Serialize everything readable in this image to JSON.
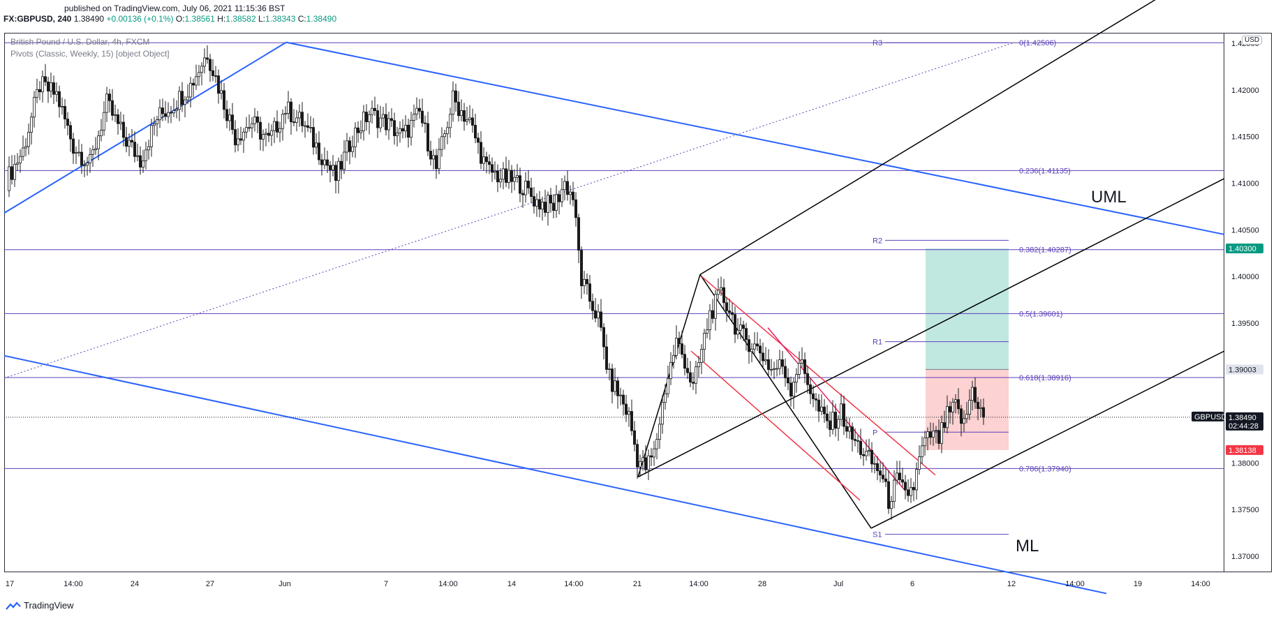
{
  "header": {
    "published": "published on TradingView.com, July 06, 2021 11:15:36 BST",
    "symbol": "FX:GBPUSD, 240",
    "last": "1.38490",
    "change": "+0.00136 (+0.1%)",
    "o_label": "O:",
    "o": "1.38561",
    "h_label": "H:",
    "h": "1.38582",
    "l_label": "L:",
    "l": "1.38343",
    "c_label": "C:",
    "c": "1.38490"
  },
  "legend": {
    "line1": "British Pound / U.S. Dollar, 4h, FXCM",
    "line2": "Pivots (Classic, Weekly, 15) [object Object]"
  },
  "currency": "USD",
  "footer": {
    "brand": "TradingView"
  },
  "colors": {
    "up": "#ffffff",
    "down": "#1a1a1a",
    "candle_edge": "#1a1a1a",
    "fib": "#5b3fb7",
    "channel_blue": "#2962ff",
    "pitchfork": "#000000",
    "red_channel": "#f23645",
    "magenta": "#e91e63",
    "target_zone": "#b9e6de",
    "stop_zone": "#fcd0d0",
    "badge_green": "#089981",
    "badge_red": "#f23645",
    "badge_black": "#131722"
  },
  "chart_data": {
    "type": "candlestick",
    "title": "British Pound / U.S. Dollar, 4h, FXCM",
    "ylim": [
      1.366,
      1.4275
    ],
    "y_ticks": [
      "1.37000",
      "1.37500",
      "1.38000",
      "1.38500",
      "1.39000",
      "1.39500",
      "1.40000",
      "1.40500",
      "1.41000",
      "1.41500",
      "1.42000",
      "1.42500"
    ],
    "x_ticks": [
      "17",
      "14:00",
      "24",
      "27",
      "Jun",
      "7",
      "14:00",
      "14",
      "14:00",
      "21",
      "14:00",
      "28",
      "Jul",
      "6",
      "12",
      "14:00",
      "19",
      "14:00"
    ],
    "price_badges": [
      {
        "label": "1.40300",
        "value": 1.403,
        "style": "green"
      },
      {
        "label": "1.39003",
        "value": 1.39003,
        "style": "grey"
      },
      {
        "label": "GBPUSD",
        "value": 1.3849,
        "style": "black"
      },
      {
        "label": "1.38490",
        "value": 1.3849,
        "style": "black"
      },
      {
        "label": "02:44:28",
        "value": 1.3849,
        "style": "black"
      },
      {
        "label": "1.38138",
        "value": 1.38138,
        "style": "red"
      }
    ],
    "fibonacci": [
      {
        "label": "0(1.42506)",
        "value": 1.42506
      },
      {
        "label": "0.236(1.41135)",
        "value": 1.41135
      },
      {
        "label": "0.382(1.40287)",
        "value": 1.40287
      },
      {
        "label": "0.5(1.39601)",
        "value": 1.39601
      },
      {
        "label": "0.618(1.38916)",
        "value": 1.38916
      },
      {
        "label": "0.786(1.37940)",
        "value": 1.3794
      }
    ],
    "pivots": [
      {
        "label": "R3",
        "value": 1.42506
      },
      {
        "label": "R2",
        "value": 1.40387
      },
      {
        "label": "R1",
        "value": 1.393
      },
      {
        "label": "P",
        "value": 1.3833
      },
      {
        "label": "S1",
        "value": 1.37235
      }
    ],
    "annotations": [
      "UML",
      "ML"
    ],
    "position": {
      "entry": 1.39003,
      "target": 1.403,
      "stop": 1.38138
    },
    "close_anchors": [
      [
        0,
        1.4103
      ],
      [
        6,
        1.4135
      ],
      [
        12,
        1.4205
      ],
      [
        18,
        1.4195
      ],
      [
        24,
        1.414
      ],
      [
        30,
        1.412
      ],
      [
        36,
        1.4185
      ],
      [
        42,
        1.415
      ],
      [
        48,
        1.4125
      ],
      [
        54,
        1.417
      ],
      [
        60,
        1.4185
      ],
      [
        66,
        1.4205
      ],
      [
        72,
        1.424
      ],
      [
        77,
        1.4195
      ],
      [
        82,
        1.415
      ],
      [
        88,
        1.4165
      ],
      [
        94,
        1.4145
      ],
      [
        100,
        1.418
      ],
      [
        106,
        1.4165
      ],
      [
        112,
        1.4135
      ],
      [
        118,
        1.4105
      ],
      [
        124,
        1.415
      ],
      [
        130,
        1.4175
      ],
      [
        136,
        1.4165
      ],
      [
        142,
        1.415
      ],
      [
        148,
        1.4175
      ],
      [
        154,
        1.4115
      ],
      [
        160,
        1.419
      ],
      [
        166,
        1.4165
      ],
      [
        172,
        1.4115
      ],
      [
        178,
        1.4105
      ],
      [
        184,
        1.41
      ],
      [
        190,
        1.408
      ],
      [
        196,
        1.4075
      ],
      [
        200,
        1.41
      ],
      [
        203,
        1.4085
      ],
      [
        206,
        1.3995
      ],
      [
        209,
        1.3975
      ],
      [
        212,
        1.3955
      ],
      [
        216,
        1.389
      ],
      [
        220,
        1.387
      ],
      [
        223,
        1.385
      ],
      [
        226,
        1.3805
      ],
      [
        229,
        1.3795
      ],
      [
        232,
        1.381
      ],
      [
        236,
        1.388
      ],
      [
        240,
        1.393
      ],
      [
        243,
        1.391
      ],
      [
        246,
        1.388
      ],
      [
        249,
        1.392
      ],
      [
        252,
        1.396
      ],
      [
        256,
        1.398
      ],
      [
        259,
        1.3965
      ],
      [
        262,
        1.394
      ],
      [
        266,
        1.393
      ],
      [
        270,
        1.392
      ],
      [
        274,
        1.39
      ],
      [
        278,
        1.3905
      ],
      [
        281,
        1.388
      ],
      [
        284,
        1.391
      ],
      [
        288,
        1.388
      ],
      [
        291,
        1.3855
      ],
      [
        295,
        1.384
      ],
      [
        299,
        1.3855
      ],
      [
        302,
        1.383
      ],
      [
        306,
        1.3815
      ],
      [
        310,
        1.38
      ],
      [
        313,
        1.379
      ],
      [
        316,
        1.376
      ],
      [
        319,
        1.378
      ],
      [
        322,
        1.3765
      ],
      [
        325,
        1.3775
      ],
      [
        328,
        1.3815
      ],
      [
        331,
        1.383
      ],
      [
        334,
        1.3825
      ],
      [
        337,
        1.385
      ],
      [
        340,
        1.386
      ],
      [
        343,
        1.384
      ],
      [
        346,
        1.388
      ],
      [
        349,
        1.3856
      ],
      [
        350,
        1.3849
      ]
    ]
  }
}
